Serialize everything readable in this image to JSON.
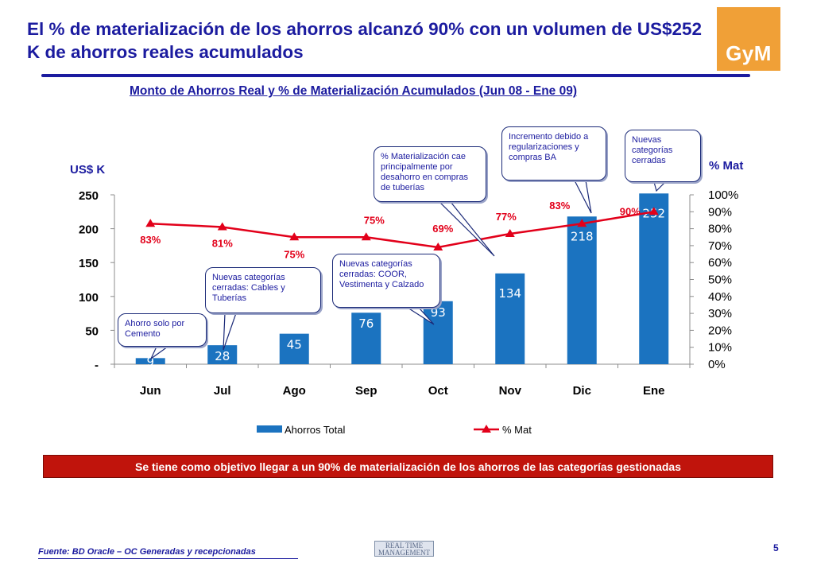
{
  "header": {
    "title": "El % de materialización de los ahorros alcanzó 90% con un volumen de US$252 K de ahorros reales acumulados",
    "logo": "GyM"
  },
  "chart_subtitle": "Monto de Ahorros Real y % de Materialización Acumulados (Jun 08 - Ene 09)",
  "axes": {
    "left_title": "US$ K",
    "right_title": "% Mat"
  },
  "chart_data": {
    "type": "bar",
    "title": "Monto de Ahorros Real y % de Materialización Acumulados (Jun 08 - Ene 09)",
    "categories": [
      "Jun",
      "Jul",
      "Ago",
      "Sep",
      "Oct",
      "Nov",
      "Dic",
      "Ene"
    ],
    "series": [
      {
        "name": "Ahorros Total",
        "type": "bar",
        "axis": "left",
        "values": [
          9,
          28,
          45,
          76,
          93,
          134,
          218,
          252
        ],
        "labels": [
          "9",
          "28",
          "45",
          "76",
          "93",
          "134",
          "218",
          "252"
        ],
        "color": "#1b73c0"
      },
      {
        "name": "% Mat",
        "type": "line",
        "axis": "right",
        "values": [
          83,
          81,
          75,
          75,
          69,
          77,
          83,
          90
        ],
        "labels": [
          "83%",
          "81%",
          "75%",
          "75%",
          "69%",
          "77%",
          "83%",
          "90%"
        ],
        "color": "#e2001a"
      }
    ],
    "y_left": {
      "label": "US$ K",
      "range": [
        0,
        250
      ],
      "ticks": [
        "-",
        "50",
        "100",
        "150",
        "200",
        "250"
      ]
    },
    "y_right": {
      "label": "% Mat",
      "range": [
        0,
        100
      ],
      "ticks": [
        "0%",
        "10%",
        "20%",
        "30%",
        "40%",
        "50%",
        "60%",
        "70%",
        "80%",
        "90%",
        "100%"
      ]
    },
    "grid": false,
    "legend_position": "bottom"
  },
  "callouts": [
    {
      "text": "Ahorro solo por Cemento"
    },
    {
      "text": "Nuevas categorías cerradas: Cables y Tuberías"
    },
    {
      "text": "% Materialización cae principalmente por desahorro en compras de tuberías"
    },
    {
      "text": "Nuevas categorías cerradas: COOR, Vestimenta y Calzado"
    },
    {
      "text": "Incremento debido a regularizaciones y compras BA"
    },
    {
      "text": "Nuevas categorías cerradas"
    }
  ],
  "goal_banner": "Se tiene como objetivo llegar a un 90% de materialización de los ahorros de las categorías gestionadas",
  "footer": {
    "source": "Fuente: BD Oracle – OC Generadas y recepcionadas",
    "watermark_line1": "REAL TIME",
    "watermark_line2": "MANAGEMENT",
    "page_number": "5"
  }
}
